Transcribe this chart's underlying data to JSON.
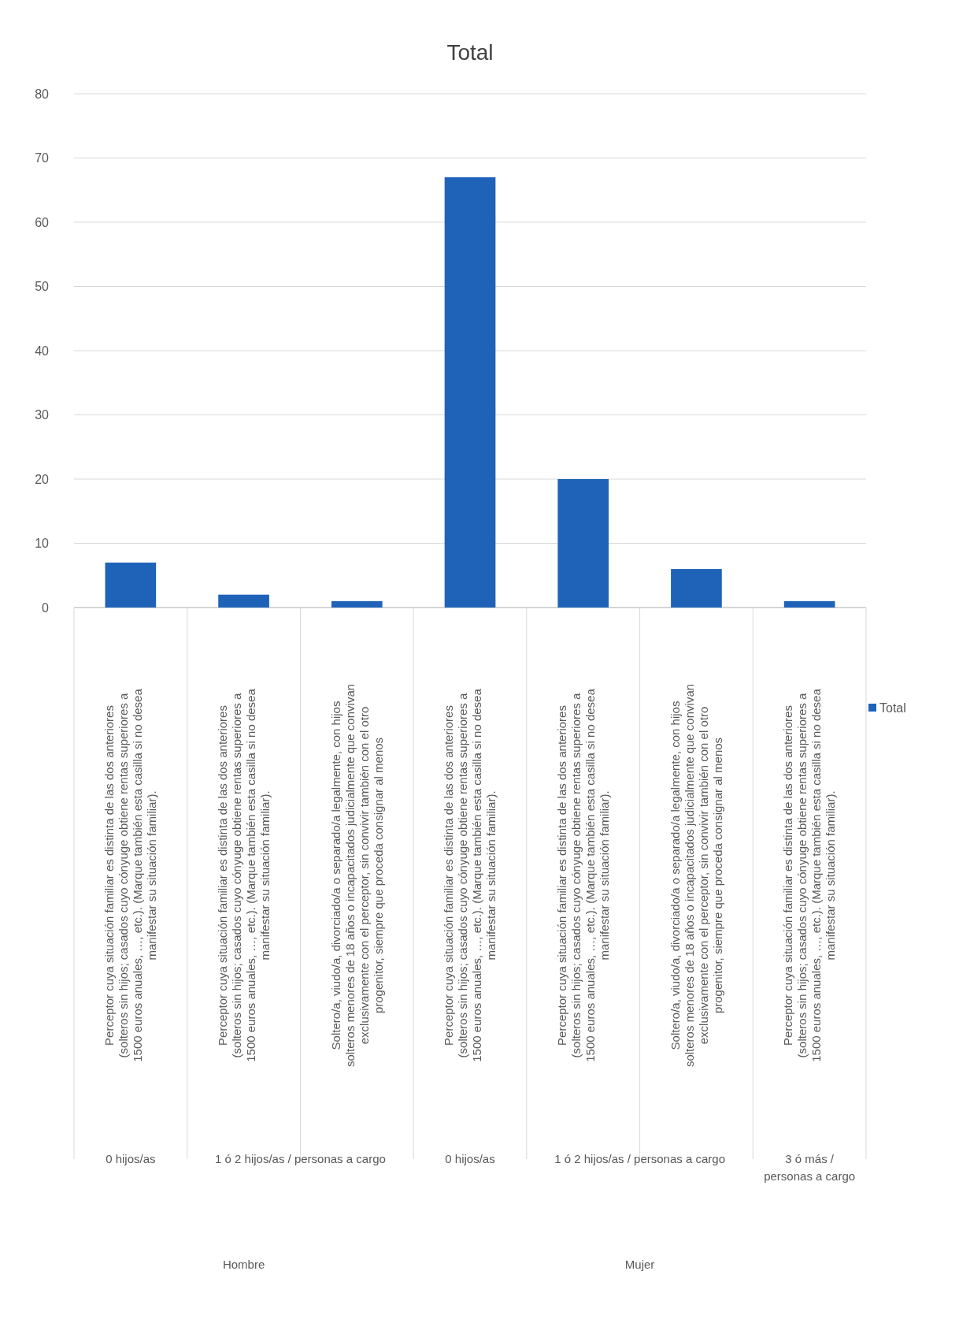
{
  "chart_data": {
    "type": "bar",
    "title": "Total",
    "categories": [
      "Perceptor cuya situación familiar es distinta de las dos anteriores (solteros sin hijos; casados cuyo cónyuge obtiene rentas superiores a 1500 euros anuales, …, etc.). (Marque también esta casilla si no desea manifestar su situación familiar).",
      "Perceptor cuya situación familiar es distinta de las dos anteriores (solteros sin hijos; casados cuyo cónyuge obtiene rentas superiores a 1500 euros anuales, …, etc.). (Marque también esta casilla si no desea manifestar su situación familiar).",
      "Soltero/a, viudo/a, divorciado/a o separado/a legalmente, con hijos solteros menores de 18 años o incapacitados judicialmente que convivan exclusivamente con el perceptor, sin convivir también con el otro progenitor, siempre que proceda consignar al menos",
      "Perceptor cuya situación familiar es distinta de las dos anteriores (solteros sin hijos; casados cuyo cónyuge obtiene rentas superiores a 1500 euros anuales, …, etc.). (Marque también esta casilla si no desea manifestar su situación familiar).",
      "Perceptor cuya situación familiar es distinta de las dos anteriores (solteros sin hijos; casados cuyo cónyuge obtiene rentas superiores a 1500 euros anuales, …, etc.). (Marque también esta casilla si no desea manifestar su situación familiar).",
      "Soltero/a, viudo/a, divorciado/a o separado/a legalmente, con hijos solteros menores de 18 años o incapacitados judicialmente que convivan exclusivamente con el perceptor, sin convivir también con el otro progenitor, siempre que proceda consignar al menos",
      "Perceptor cuya situación familiar es distinta de las dos anteriores (solteros sin hijos; casados cuyo cónyuge obtiene rentas superiores a 1500 euros anuales, …, etc.). (Marque también esta casilla si no desea manifestar su situación familiar)."
    ],
    "series": [
      {
        "name": "Total",
        "color": "#1f63b8",
        "values": [
          7,
          2,
          1,
          67,
          20,
          6,
          1
        ]
      }
    ],
    "annotations": [
      "0 hijos/as",
      "1 ó 2  hijos/as / personas a cargo",
      "0 hijos/as",
      "1 ó 2  hijos/as / personas a cargo",
      "3 ó más / personas a cargo",
      "Hombre",
      "Mujer"
    ],
    "ylim": [
      0,
      80
    ],
    "yticks": [
      0,
      10,
      20,
      30,
      40,
      50,
      60,
      70,
      80
    ],
    "grid": "y",
    "legend": "right"
  }
}
